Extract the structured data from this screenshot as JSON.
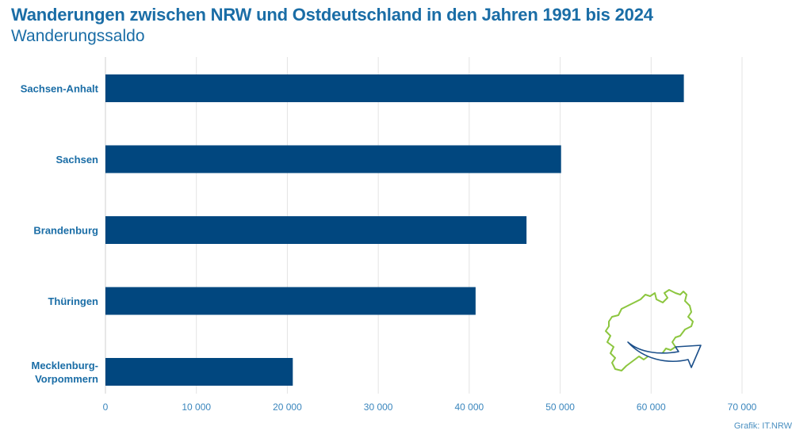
{
  "header": {
    "title": "Wanderungen zwischen NRW und Ostdeutschland in den Jahren 1991 bis 2024",
    "subtitle": "Wanderungssaldo"
  },
  "footer": {
    "source": "Grafik: IT.NRW"
  },
  "colors": {
    "bar": "#01477f",
    "title": "#1a6da6",
    "grid": "#e3e3e3",
    "map_outline": "#8cc63f",
    "arrow": "#1b4f8a"
  },
  "decoration": {
    "icon": "nrw-map-with-arrow-icon"
  },
  "chart_data": {
    "type": "bar",
    "orientation": "horizontal",
    "title": "Wanderungen zwischen NRW und Ostdeutschland in den Jahren 1991 bis 2024",
    "subtitle": "Wanderungssaldo",
    "xlabel": "",
    "ylabel": "",
    "categories": [
      "Sachsen-Anhalt",
      "Sachsen",
      "Brandenburg",
      "Thüringen",
      "Mecklenburg-Vorpommern"
    ],
    "category_lines": [
      [
        "Sachsen-Anhalt"
      ],
      [
        "Sachsen"
      ],
      [
        "Brandenburg"
      ],
      [
        "Thüringen"
      ],
      [
        "Mecklenburg-",
        "Vorpommern"
      ]
    ],
    "values": [
      63600,
      50100,
      46300,
      40700,
      20600
    ],
    "xlim": [
      0,
      70000
    ],
    "xticks": [
      0,
      10000,
      20000,
      30000,
      40000,
      50000,
      60000,
      70000
    ],
    "xtick_labels": [
      "0",
      "10 000",
      "20 000",
      "30 000",
      "40 000",
      "50 000",
      "60 000",
      "70 000"
    ],
    "grid": true,
    "legend": "none"
  }
}
